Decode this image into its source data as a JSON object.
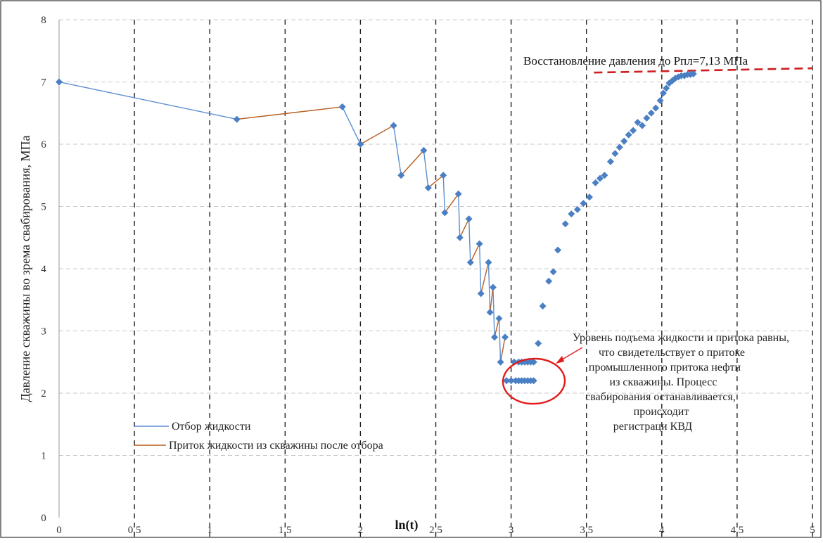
{
  "chart_data": {
    "type": "scatter",
    "xlabel": "ln(t)",
    "ylabel": "Давление скважины во зрема свабирования, МПа",
    "xlim": [
      0,
      5
    ],
    "ylim": [
      0,
      8
    ],
    "x_ticks": [
      "0",
      "0,5",
      "1",
      "1,5",
      "2",
      "2,5",
      "3",
      "3,5",
      "4",
      "4,5",
      "5"
    ],
    "y_ticks": [
      "0",
      "1",
      "2",
      "3",
      "4",
      "5",
      "6",
      "7",
      "8"
    ],
    "x_tick_values": [
      0,
      0.5,
      1,
      1.5,
      2,
      2.5,
      3,
      3.5,
      4,
      4.5,
      5
    ],
    "y_tick_values": [
      0,
      1,
      2,
      3,
      4,
      5,
      6,
      7,
      8
    ],
    "grid": "dashed",
    "legend_position": "bottom-left",
    "series": [
      {
        "name": "Отбор жидкости",
        "color": "#5b8fd0",
        "segments": [
          [
            [
              0,
              7.0
            ],
            [
              1.18,
              6.4
            ]
          ],
          [
            [
              1.88,
              6.6
            ],
            [
              2.0,
              6.0
            ]
          ],
          [
            [
              2.22,
              6.3
            ],
            [
              2.27,
              5.5
            ]
          ],
          [
            [
              2.42,
              5.9
            ],
            [
              2.45,
              5.3
            ]
          ],
          [
            [
              2.55,
              5.5
            ],
            [
              2.56,
              4.9
            ]
          ],
          [
            [
              2.65,
              5.2
            ],
            [
              2.66,
              4.5
            ]
          ],
          [
            [
              2.72,
              4.8
            ],
            [
              2.73,
              4.1
            ]
          ],
          [
            [
              2.79,
              4.4
            ],
            [
              2.8,
              3.6
            ]
          ],
          [
            [
              2.85,
              4.1
            ],
            [
              2.86,
              3.3
            ]
          ],
          [
            [
              2.88,
              3.7
            ],
            [
              2.89,
              2.9
            ]
          ],
          [
            [
              2.92,
              3.2
            ],
            [
              2.93,
              2.5
            ]
          ]
        ]
      },
      {
        "name": "Приток жидкости из скважины после отбора",
        "color": "#b85c1e",
        "segments": [
          [
            [
              1.18,
              6.4
            ],
            [
              1.88,
              6.6
            ]
          ],
          [
            [
              2.0,
              6.0
            ],
            [
              2.22,
              6.3
            ]
          ],
          [
            [
              2.27,
              5.5
            ],
            [
              2.42,
              5.9
            ]
          ],
          [
            [
              2.45,
              5.3
            ],
            [
              2.55,
              5.5
            ]
          ],
          [
            [
              2.56,
              4.9
            ],
            [
              2.65,
              5.2
            ]
          ],
          [
            [
              2.66,
              4.5
            ],
            [
              2.72,
              4.8
            ]
          ],
          [
            [
              2.73,
              4.1
            ],
            [
              2.79,
              4.4
            ]
          ],
          [
            [
              2.8,
              3.6
            ],
            [
              2.85,
              4.1
            ]
          ],
          [
            [
              2.86,
              3.3
            ],
            [
              2.88,
              3.7
            ]
          ],
          [
            [
              2.89,
              2.9
            ],
            [
              2.92,
              3.2
            ]
          ],
          [
            [
              2.93,
              2.5
            ],
            [
              2.96,
              2.9
            ]
          ]
        ]
      },
      {
        "name": "",
        "color": "#4a7fc4",
        "marker": "diamond",
        "points": [
          [
            0,
            7.0
          ],
          [
            1.18,
            6.4
          ],
          [
            1.88,
            6.6
          ],
          [
            2.0,
            6.0
          ],
          [
            2.22,
            6.3
          ],
          [
            2.27,
            5.5
          ],
          [
            2.42,
            5.9
          ],
          [
            2.45,
            5.3
          ],
          [
            2.55,
            5.5
          ],
          [
            2.56,
            4.9
          ],
          [
            2.65,
            5.2
          ],
          [
            2.66,
            4.5
          ],
          [
            2.72,
            4.8
          ],
          [
            2.73,
            4.1
          ],
          [
            2.79,
            4.4
          ],
          [
            2.8,
            3.6
          ],
          [
            2.85,
            4.1
          ],
          [
            2.86,
            3.3
          ],
          [
            2.88,
            3.7
          ],
          [
            2.89,
            2.9
          ],
          [
            2.92,
            3.2
          ],
          [
            2.93,
            2.5
          ],
          [
            2.96,
            2.9
          ],
          [
            3.02,
            2.5
          ],
          [
            3.05,
            2.5
          ],
          [
            3.07,
            2.5
          ],
          [
            3.09,
            2.5
          ],
          [
            3.11,
            2.5
          ],
          [
            3.13,
            2.5
          ],
          [
            3.15,
            2.5
          ],
          [
            2.97,
            2.2
          ],
          [
            3.0,
            2.2
          ],
          [
            3.03,
            2.2
          ],
          [
            3.05,
            2.2
          ],
          [
            3.07,
            2.2
          ],
          [
            3.09,
            2.2
          ],
          [
            3.11,
            2.2
          ],
          [
            3.13,
            2.2
          ],
          [
            3.15,
            2.2
          ],
          [
            3.18,
            2.8
          ],
          [
            3.21,
            3.4
          ],
          [
            3.25,
            3.8
          ],
          [
            3.28,
            3.95
          ],
          [
            3.31,
            4.3
          ],
          [
            3.36,
            4.72
          ],
          [
            3.4,
            4.88
          ],
          [
            3.44,
            4.95
          ],
          [
            3.48,
            5.05
          ],
          [
            3.52,
            5.15
          ],
          [
            3.56,
            5.38
          ],
          [
            3.59,
            5.45
          ],
          [
            3.62,
            5.5
          ],
          [
            3.66,
            5.72
          ],
          [
            3.69,
            5.85
          ],
          [
            3.72,
            5.95
          ],
          [
            3.75,
            6.05
          ],
          [
            3.78,
            6.15
          ],
          [
            3.81,
            6.22
          ],
          [
            3.84,
            6.35
          ],
          [
            3.87,
            6.3
          ],
          [
            3.9,
            6.42
          ],
          [
            3.93,
            6.5
          ],
          [
            3.96,
            6.58
          ],
          [
            3.99,
            6.7
          ],
          [
            4.01,
            6.82
          ],
          [
            4.03,
            6.9
          ],
          [
            4.05,
            6.98
          ],
          [
            4.07,
            7.02
          ],
          [
            4.09,
            7.06
          ],
          [
            4.11,
            7.08
          ],
          [
            4.13,
            7.1
          ],
          [
            4.15,
            7.1
          ],
          [
            4.17,
            7.12
          ],
          [
            4.19,
            7.12
          ],
          [
            4.21,
            7.13
          ]
        ]
      },
      {
        "name": "",
        "color": "#cc1f1f",
        "style": "dashed",
        "segments": [
          [
            [
              3.55,
              7.15
            ],
            [
              5.0,
              7.22
            ]
          ]
        ]
      }
    ],
    "annotations": [
      "Восстановление давления до  Рпл=7,13 МПа",
      "Уровень подъема жидкости и притока равны,",
      "что свидетельствует о притоке",
      "промышленного притока нефти",
      "из скважины. Процесс",
      "свабирования останавливается,",
      "происходит",
      "регистраци КВД"
    ]
  },
  "colors": {
    "extraction": "#5b8fd0",
    "inflow": "#b85c1e",
    "markers": "#4a7fc4",
    "highlight": "#e11b1b"
  }
}
